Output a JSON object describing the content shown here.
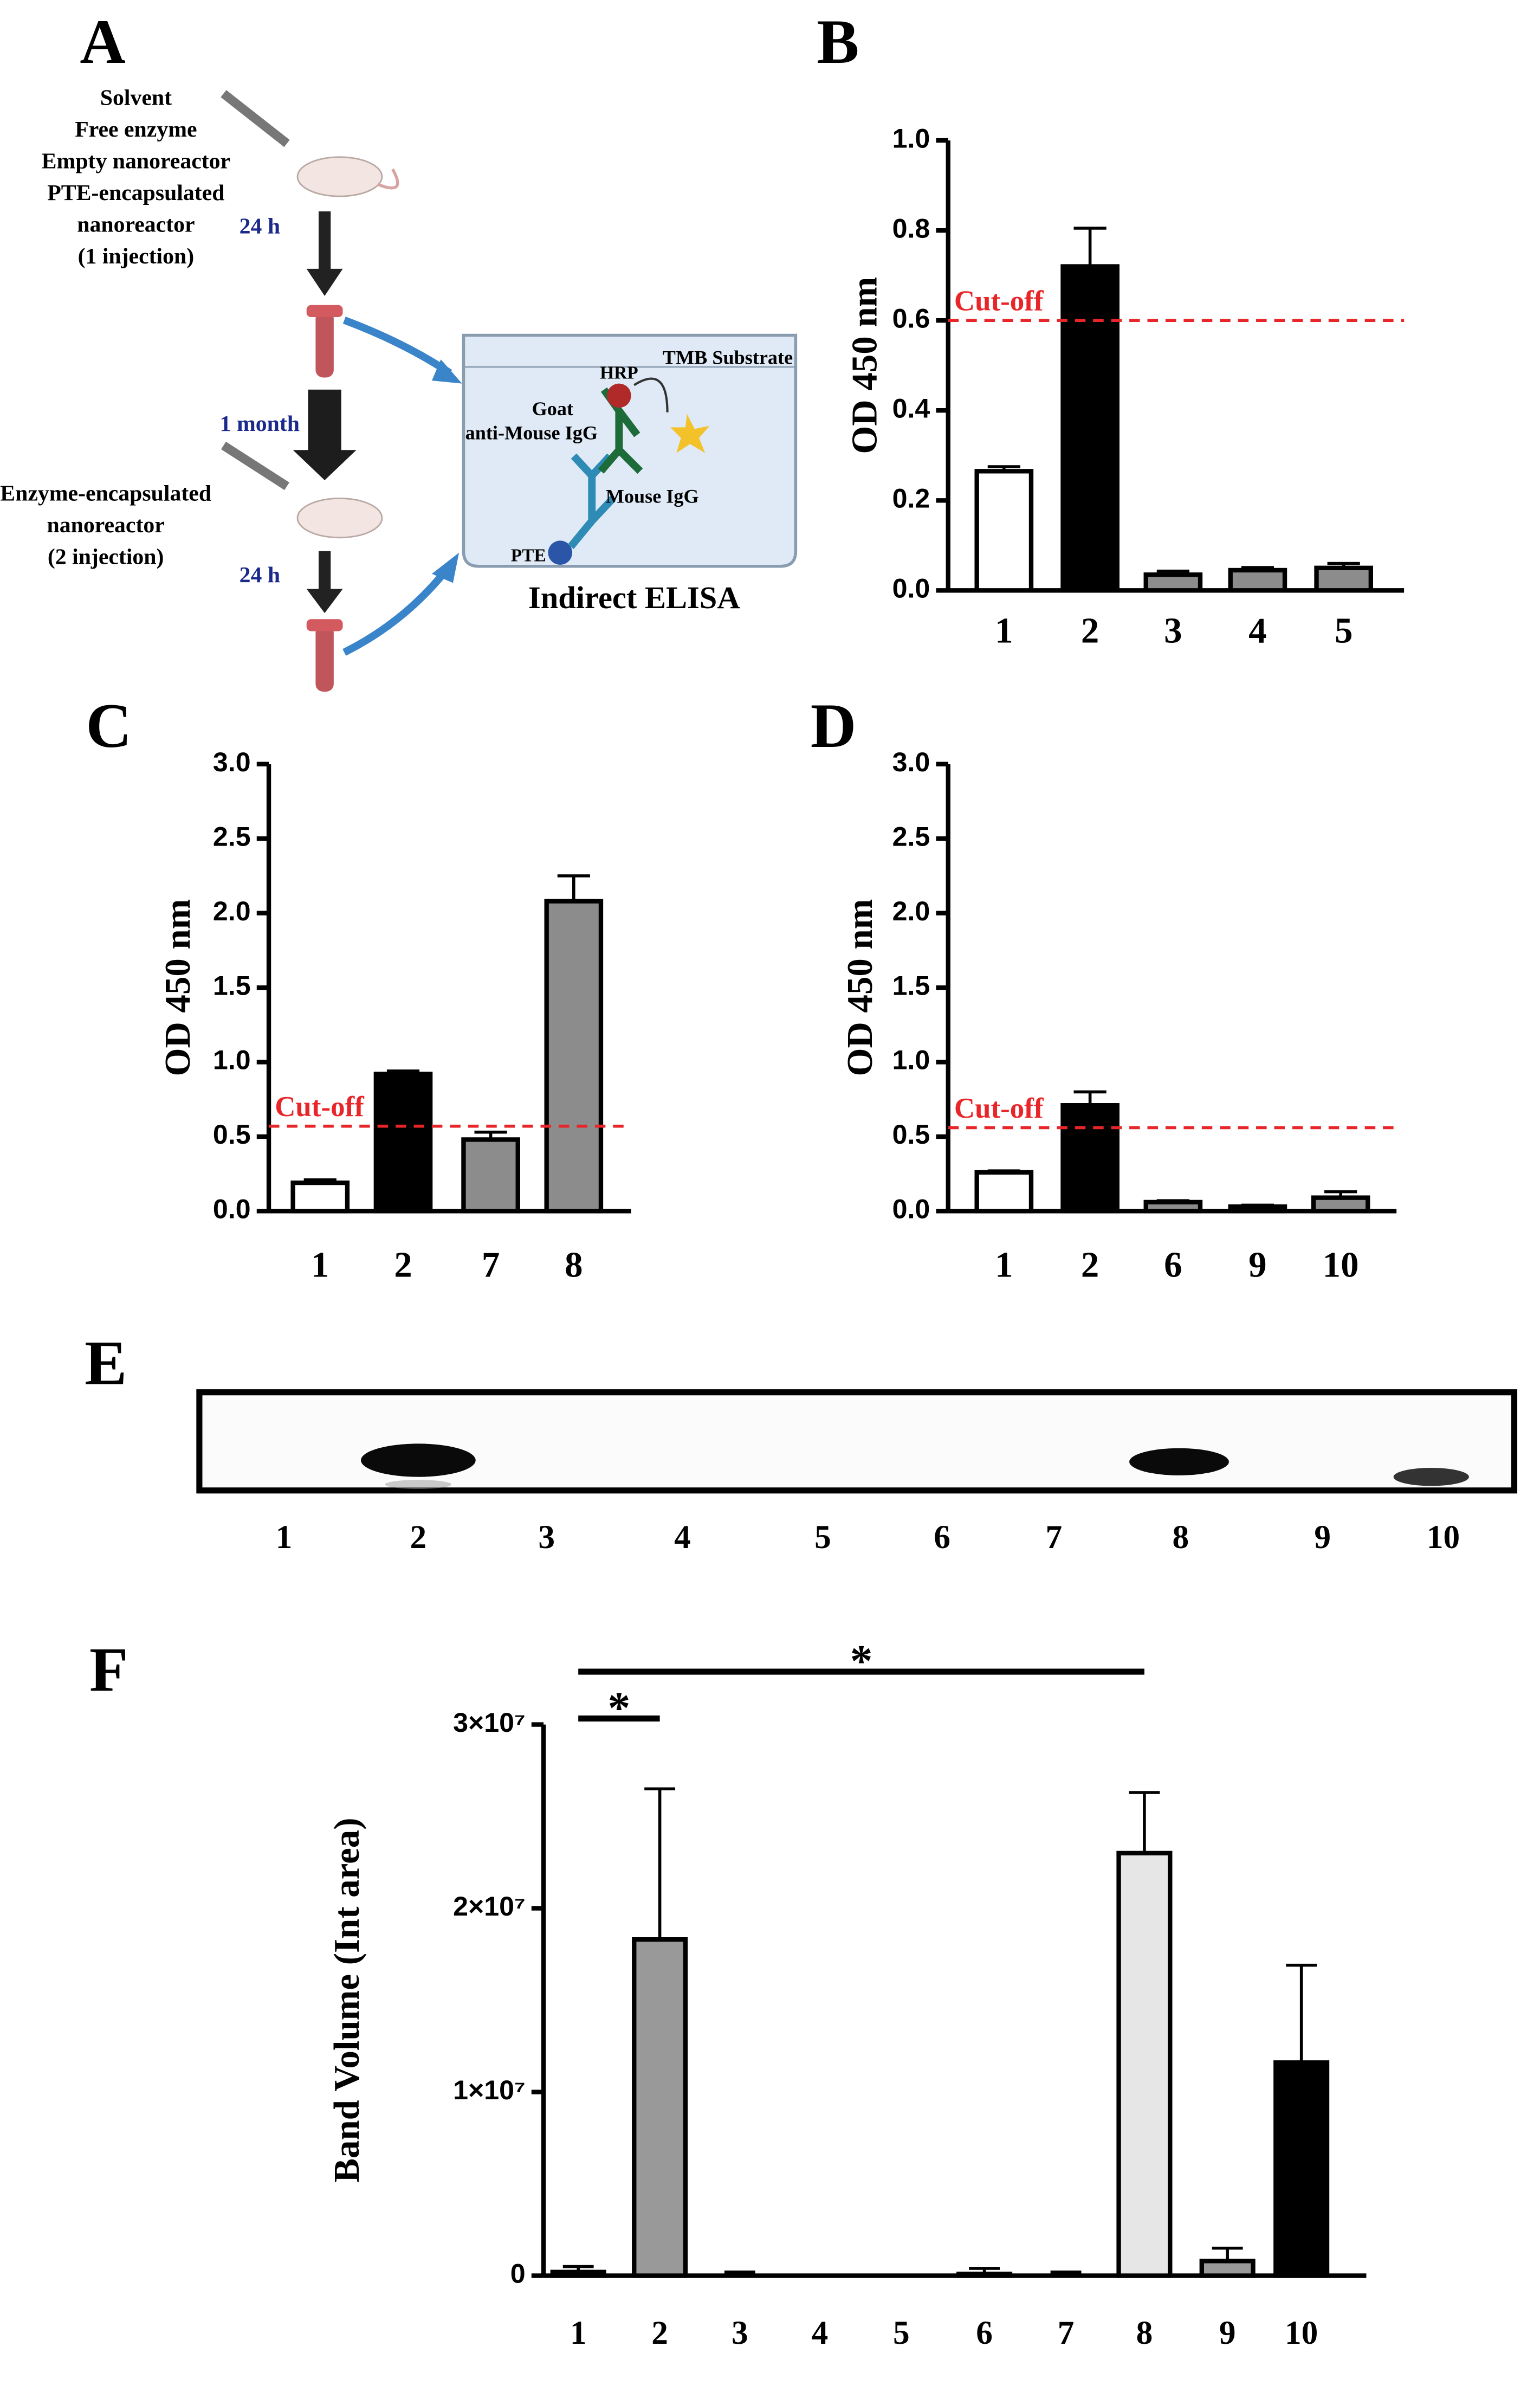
{
  "panels": [
    "A",
    "B",
    "C",
    "D",
    "E",
    "F"
  ],
  "diagram": {
    "texts": [
      "Solvent",
      "Free enzyme",
      "Empty nanoreactor",
      "PTE-encapsulated",
      "nanoreactor",
      "(1 injection)",
      "24 h",
      "1 month",
      "Enzyme-encapsulated",
      "nanoreactor",
      "(2 injection)",
      "24 h",
      "TMB Substrate",
      "HRP",
      "Goat",
      "anti-Mouse IgG",
      "Mouse IgG",
      "PTE",
      "Indirect ELISA"
    ]
  },
  "chart_data": [
    {
      "type": "bar",
      "ylabel": "OD 450 nm",
      "categories": [
        "1",
        "2",
        "3",
        "4",
        "5"
      ],
      "values": [
        0.265,
        0.72,
        0.035,
        0.045,
        0.05
      ],
      "errors": [
        0.01,
        0.085,
        0.008,
        0.006,
        0.01
      ],
      "colors": [
        "#ffffff",
        "#000000",
        "#8c8c8c",
        "#8c8c8c",
        "#8c8c8c"
      ],
      "ylim": [
        0,
        1.0
      ],
      "yticks": [
        {
          "value": 0,
          "label": "0.0"
        },
        0.2,
        0.4,
        0.6,
        0.8,
        {
          "value": 1,
          "label": "1.0"
        }
      ],
      "cutoff": {
        "label": "Cut-off",
        "value": 0.6,
        "color": "#e8262a"
      }
    },
    {
      "type": "bar",
      "ylabel": "OD 450 nm",
      "categories": [
        "1",
        "2",
        "7",
        "8"
      ],
      "values": [
        0.19,
        0.92,
        0.48,
        2.08
      ],
      "errors": [
        0.02,
        0.02,
        0.05,
        0.17
      ],
      "colors": [
        "#ffffff",
        "#000000",
        "#8c8c8c",
        "#8c8c8c"
      ],
      "ylim": [
        0,
        3.0
      ],
      "yticks": [
        {
          "value": 0,
          "label": "0.0"
        },
        0.5,
        {
          "value": 1,
          "label": "1.0"
        },
        1.5,
        {
          "value": 2,
          "label": "2.0"
        },
        2.5,
        {
          "value": 3,
          "label": "3.0"
        }
      ],
      "cutoff": {
        "label": "Cut-off",
        "value": 0.57,
        "color": "#e8262a"
      }
    },
    {
      "type": "bar",
      "ylabel": "OD 450 nm",
      "categories": [
        "1",
        "2",
        "6",
        "9",
        "10"
      ],
      "values": [
        0.26,
        0.71,
        0.06,
        0.03,
        0.09
      ],
      "errors": [
        0.01,
        0.09,
        0.01,
        0.01,
        0.04
      ],
      "colors": [
        "#ffffff",
        "#000000",
        "#8c8c8c",
        "#8c8c8c",
        "#8c8c8c"
      ],
      "ylim": [
        0,
        3.0
      ],
      "yticks": [
        {
          "value": 0,
          "label": "0.0"
        },
        0.5,
        {
          "value": 1,
          "label": "1.0"
        },
        1.5,
        {
          "value": 2,
          "label": "2.0"
        },
        2.5,
        {
          "value": 3,
          "label": "3.0"
        }
      ],
      "cutoff": {
        "label": "Cut-off",
        "value": 0.56,
        "color": "#e8262a"
      }
    },
    {
      "type": "blot",
      "categories": [
        "1",
        "2",
        "3",
        "4",
        "5",
        "6",
        "7",
        "8",
        "9",
        "10"
      ]
    },
    {
      "type": "bar",
      "ylabel": "Band Volume (Int area)",
      "categories": [
        "1",
        "2",
        "3",
        "4",
        "5",
        "6",
        "7",
        "8",
        "9",
        "10"
      ],
      "values": [
        200000,
        18300000,
        0,
        0,
        0,
        100000,
        0,
        23000000,
        800000,
        11600000
      ],
      "errors": [
        300000,
        8200000,
        200000,
        0,
        0,
        300000,
        200000,
        3300000,
        700000,
        5300000
      ],
      "colors": [
        "#ffffff",
        "#999999",
        "#ffffff",
        "#ffffff",
        "#ffffff",
        "#ffffff",
        "#ffffff",
        "#e6e6e6",
        "#999999",
        "#000000"
      ],
      "ylim": [
        0,
        30000000
      ],
      "yticks": [
        0,
        {
          "value": 10000000,
          "label": "1×10⁷"
        },
        {
          "value": 20000000,
          "label": "2×10⁷"
        },
        {
          "value": 30000000,
          "label": "3×10⁷"
        }
      ],
      "significance": [
        {
          "label": "*",
          "between": [
            "1",
            "2"
          ]
        },
        {
          "label": "*",
          "between": [
            "1",
            "8"
          ]
        }
      ]
    }
  ]
}
